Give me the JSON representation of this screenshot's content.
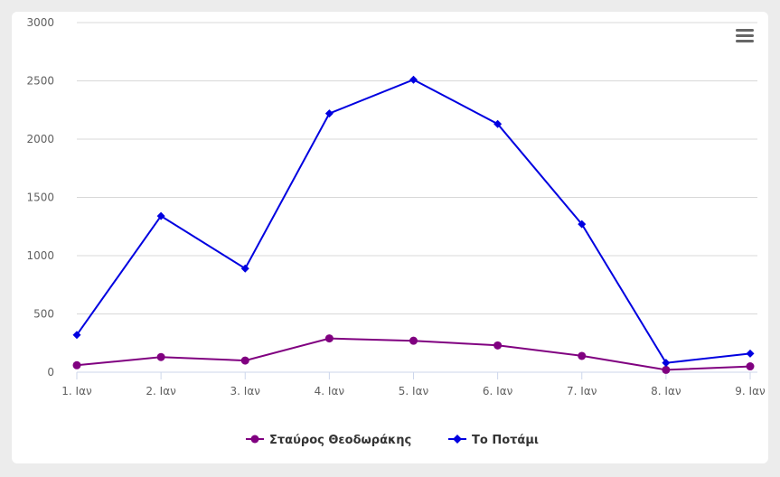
{
  "chart_data": {
    "type": "line",
    "x": [
      "1. Ιαν",
      "2. Ιαν",
      "3. Ιαν",
      "4. Ιαν",
      "5. Ιαν",
      "6. Ιαν",
      "7. Ιαν",
      "8. Ιαν",
      "9. Ιαν"
    ],
    "ylim": [
      0,
      3000
    ],
    "yticks": [
      "0",
      "500",
      "1000",
      "1500",
      "2000",
      "2500",
      "3000"
    ],
    "grid": true,
    "legend_position": "bottom-center",
    "series": [
      {
        "name": "Σταύρος Θεοδωράκης",
        "color": "#800080",
        "marker": "circle",
        "values": [
          60,
          130,
          100,
          290,
          270,
          230,
          140,
          20,
          50
        ]
      },
      {
        "name": "Το Ποτάμι",
        "color": "#0000e0",
        "marker": "diamond",
        "values": [
          320,
          1340,
          890,
          2220,
          2510,
          2130,
          1270,
          80,
          160
        ]
      }
    ]
  },
  "icons": {
    "menu": "hamburger-menu-icon"
  }
}
